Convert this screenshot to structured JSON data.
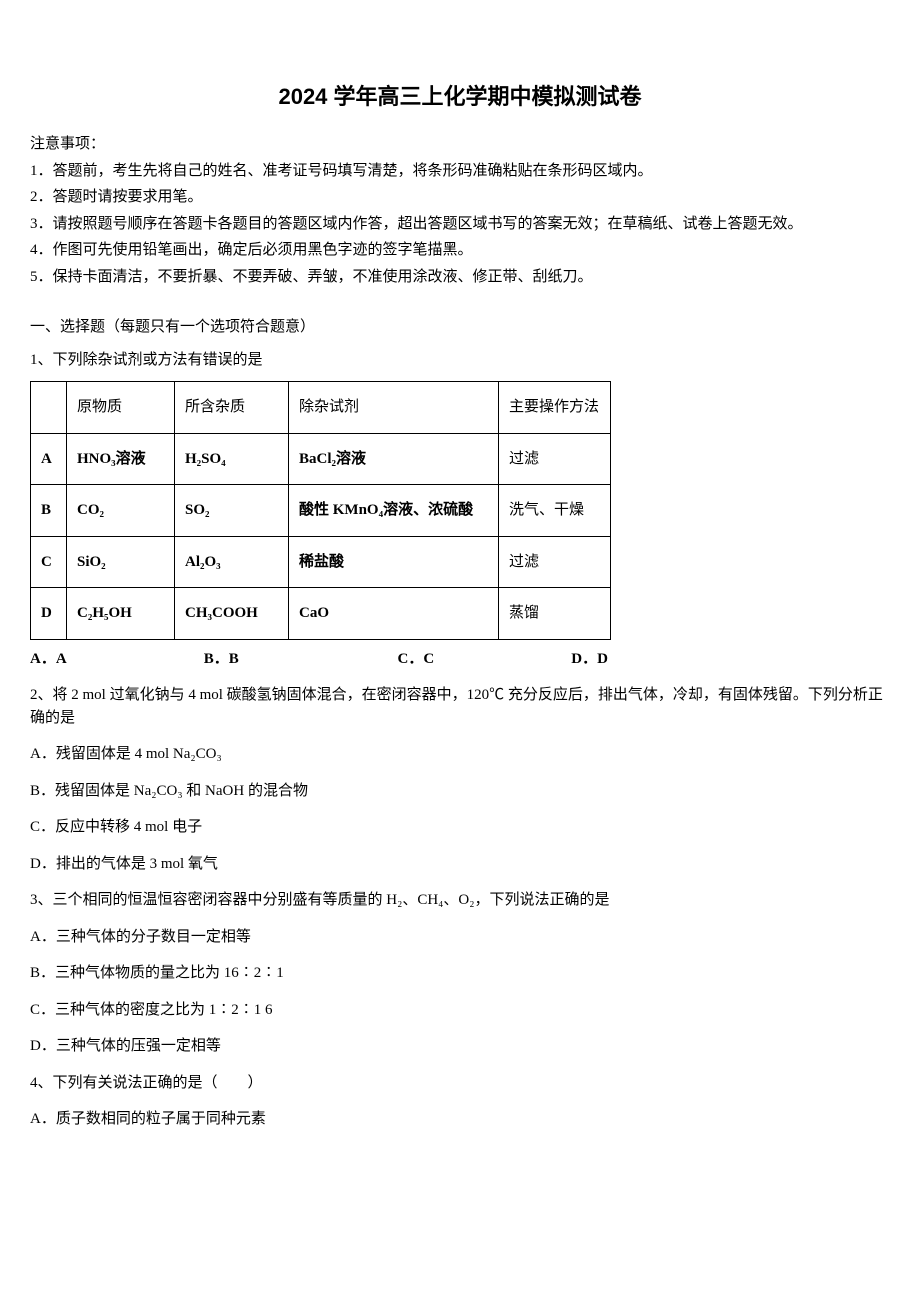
{
  "title": "2024 学年高三上化学期中模拟测试卷",
  "notice": {
    "heading": "注意事项：",
    "items": [
      "1．答题前，考生先将自己的姓名、准考证号码填写清楚，将条形码准确粘贴在条形码区域内。",
      "2．答题时请按要求用笔。",
      "3．请按照题号顺序在答题卡各题目的答题区域内作答，超出答题区域书写的答案无效；在草稿纸、试卷上答题无效。",
      "4．作图可先使用铅笔画出，确定后必须用黑色字迹的签字笔描黑。",
      "5．保持卡面清洁，不要折暴、不要弄破、弄皱，不准使用涂改液、修正带、刮纸刀。"
    ]
  },
  "section1": {
    "heading": "一、选择题（每题只有一个选项符合题意）",
    "q1": {
      "stem": "1、下列除杂试剂或方法有错误的是",
      "table": {
        "header": [
          "",
          "原物质",
          "所含杂质",
          "除杂试剂",
          "主要操作方法"
        ],
        "rows": [
          [
            "A",
            "HNO₃溶液",
            "H₂SO₄",
            "BaCl₂溶液",
            "过滤"
          ],
          [
            "B",
            "CO₂",
            "SO₂",
            "酸性 KMnO₄溶液、浓硫酸",
            "洗气、干燥"
          ],
          [
            "C",
            "SiO₂",
            "Al₂O₃",
            "稀盐酸",
            "过滤"
          ],
          [
            "D",
            "C₂H₅OH",
            "CH₃COOH",
            "CaO",
            "蒸馏"
          ]
        ]
      },
      "options": {
        "a": "A．A",
        "b": "B．B",
        "c": "C．C",
        "d": "D．D"
      }
    },
    "q2": {
      "stem": "2、将 2 mol 过氧化钠与 4 mol 碳酸氢钠固体混合，在密闭容器中，120℃ 充分反应后，排出气体，冷却，有固体残留。下列分析正确的是",
      "options": {
        "a": "A．残留固体是 4 mol Na₂CO₃",
        "b": "B．残留固体是 Na₂CO₃ 和 NaOH 的混合物",
        "c": "C．反应中转移 4 mol 电子",
        "d": "D．排出的气体是 3 mol 氧气"
      }
    },
    "q3": {
      "stem": "3、三个相同的恒温恒容密闭容器中分别盛有等质量的 H₂、CH₄、O₂，下列说法正确的是",
      "options": {
        "a": "A．三种气体的分子数目一定相等",
        "b": "B．三种气体物质的量之比为 16∶2∶1",
        "c": "C．三种气体的密度之比为 1∶2∶1 6",
        "d": "D．三种气体的压强一定相等"
      }
    },
    "q4": {
      "stem": "4、下列有关说法正确的是（　　）",
      "options": {
        "a": "A．质子数相同的粒子属于同种元素"
      }
    }
  }
}
